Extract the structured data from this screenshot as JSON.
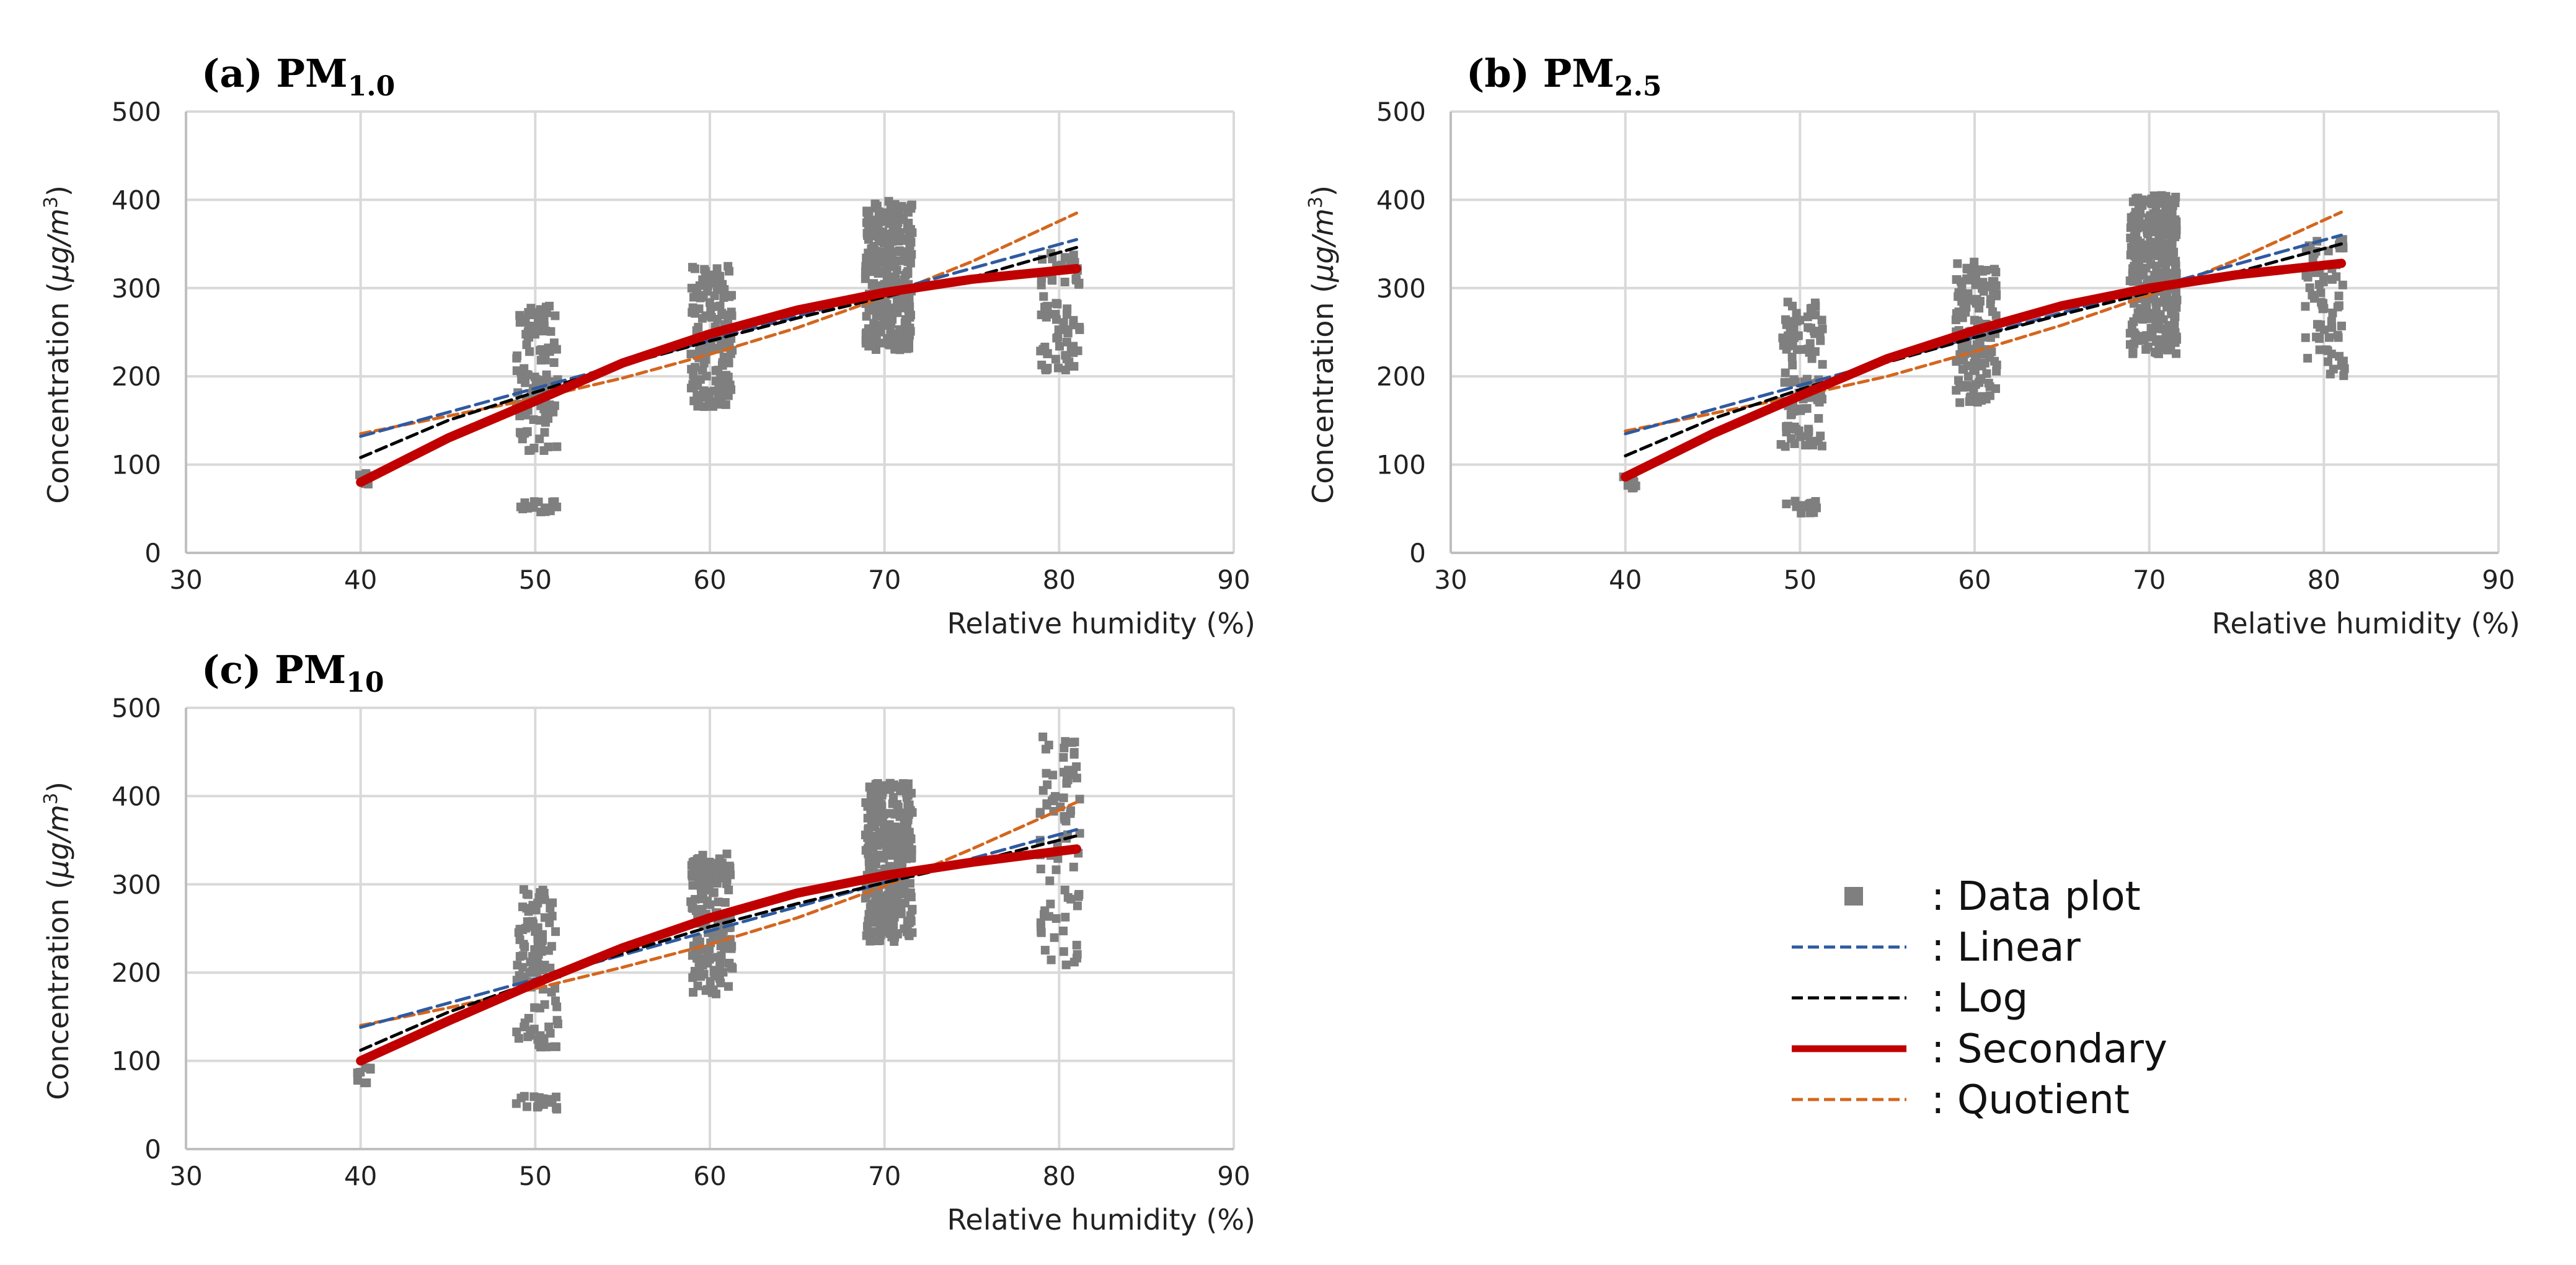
{
  "chart_data": [
    {
      "type": "scatter",
      "panel": "a",
      "title": "(a) PM",
      "title_subscript": "1.0",
      "xlabel": "Relative humidity (%)",
      "ylabel": "Concentration (μg/m³)",
      "ylabel_parts": {
        "prefix": "Concentration (",
        "unit": "μg/m",
        "sup": "3",
        "suffix": ")"
      },
      "xlim": [
        30,
        90
      ],
      "ylim": [
        0,
        500
      ],
      "xticks": [
        30,
        40,
        50,
        60,
        70,
        80,
        90
      ],
      "yticks": [
        0,
        100,
        200,
        300,
        400,
        500
      ],
      "grid": true,
      "data_clusters": [
        {
          "x_range": [
            39.8,
            40.6
          ],
          "y_range": [
            75,
            90
          ],
          "n": 8
        },
        {
          "x_range": [
            48.9,
            51.3
          ],
          "y_range": [
            45,
            60
          ],
          "n": 18
        },
        {
          "x_range": [
            48.9,
            51.3
          ],
          "y_range": [
            115,
            280
          ],
          "n": 110
        },
        {
          "x_range": [
            58.9,
            61.3
          ],
          "y_range": [
            165,
            325
          ],
          "n": 150
        },
        {
          "x_range": [
            68.9,
            71.6
          ],
          "y_range": [
            230,
            400
          ],
          "n": 320
        },
        {
          "x_range": [
            78.9,
            81.2
          ],
          "y_range": [
            205,
            340
          ],
          "n": 70
        }
      ],
      "series": [
        {
          "name": "Linear",
          "x": [
            40,
            81
          ],
          "y": [
            132,
            355
          ]
        },
        {
          "name": "Log",
          "x": [
            40,
            45,
            50,
            55,
            60,
            65,
            70,
            75,
            81
          ],
          "y": [
            108,
            150,
            182,
            213,
            240,
            266,
            290,
            312,
            346
          ]
        },
        {
          "name": "Secondary",
          "x": [
            40,
            45,
            50,
            55,
            60,
            65,
            70,
            75,
            81
          ],
          "y": [
            80,
            130,
            172,
            215,
            248,
            275,
            295,
            310,
            322
          ]
        },
        {
          "name": "Quotient",
          "x": [
            40,
            45,
            50,
            55,
            60,
            65,
            70,
            75,
            81
          ],
          "y": [
            135,
            155,
            175,
            198,
            225,
            255,
            290,
            330,
            385
          ]
        }
      ]
    },
    {
      "type": "scatter",
      "panel": "b",
      "title": "(b) PM",
      "title_subscript": "2.5",
      "xlabel": "Relative humidity (%)",
      "ylabel": "Concentration (μg/m³)",
      "ylabel_parts": {
        "prefix": "Concentration (",
        "unit": "μg/m",
        "sup": "3",
        "suffix": ")"
      },
      "xlim": [
        30,
        90
      ],
      "ylim": [
        0,
        500
      ],
      "xticks": [
        30,
        40,
        50,
        60,
        70,
        80,
        90
      ],
      "yticks": [
        0,
        100,
        200,
        300,
        400,
        500
      ],
      "grid": true,
      "data_clusters": [
        {
          "x_range": [
            39.8,
            40.6
          ],
          "y_range": [
            72,
            95
          ],
          "n": 8
        },
        {
          "x_range": [
            48.9,
            51.3
          ],
          "y_range": [
            45,
            60
          ],
          "n": 18
        },
        {
          "x_range": [
            48.9,
            51.3
          ],
          "y_range": [
            120,
            285
          ],
          "n": 110
        },
        {
          "x_range": [
            58.9,
            61.3
          ],
          "y_range": [
            170,
            330
          ],
          "n": 150
        },
        {
          "x_range": [
            68.9,
            71.6
          ],
          "y_range": [
            225,
            405
          ],
          "n": 320
        },
        {
          "x_range": [
            78.9,
            81.2
          ],
          "y_range": [
            200,
            360
          ],
          "n": 70
        }
      ],
      "series": [
        {
          "name": "Linear",
          "x": [
            40,
            81
          ],
          "y": [
            135,
            360
          ]
        },
        {
          "name": "Log",
          "x": [
            40,
            45,
            50,
            55,
            60,
            65,
            70,
            75,
            81
          ],
          "y": [
            110,
            152,
            185,
            216,
            244,
            270,
            295,
            318,
            350
          ]
        },
        {
          "name": "Secondary",
          "x": [
            40,
            45,
            50,
            55,
            60,
            65,
            70,
            75,
            81
          ],
          "y": [
            86,
            135,
            178,
            220,
            252,
            280,
            300,
            315,
            328
          ]
        },
        {
          "name": "Quotient",
          "x": [
            40,
            45,
            50,
            55,
            60,
            65,
            70,
            75,
            81
          ],
          "y": [
            138,
            158,
            178,
            200,
            228,
            258,
            292,
            332,
            386
          ]
        }
      ]
    },
    {
      "type": "scatter",
      "panel": "c",
      "title": "(c) PM",
      "title_subscript": "10",
      "xlabel": "Relative humidity (%)",
      "ylabel": "Concentration (μg/m³)",
      "ylabel_parts": {
        "prefix": "Concentration (",
        "unit": "μg/m",
        "sup": "3",
        "suffix": ")"
      },
      "xlim": [
        30,
        90
      ],
      "ylim": [
        0,
        500
      ],
      "xticks": [
        30,
        40,
        50,
        60,
        70,
        80,
        90
      ],
      "yticks": [
        0,
        100,
        200,
        300,
        400,
        500
      ],
      "grid": true,
      "data_clusters": [
        {
          "x_range": [
            39.8,
            40.6
          ],
          "y_range": [
            72,
            95
          ],
          "n": 8
        },
        {
          "x_range": [
            48.9,
            51.3
          ],
          "y_range": [
            45,
            60
          ],
          "n": 18
        },
        {
          "x_range": [
            48.9,
            51.3
          ],
          "y_range": [
            115,
            295
          ],
          "n": 110
        },
        {
          "x_range": [
            58.9,
            61.3
          ],
          "y_range": [
            175,
            335
          ],
          "n": 150
        },
        {
          "x_range": [
            68.9,
            71.6
          ],
          "y_range": [
            235,
            415
          ],
          "n": 320
        },
        {
          "x_range": [
            78.9,
            81.2
          ],
          "y_range": [
            205,
            475
          ],
          "n": 80
        }
      ],
      "series": [
        {
          "name": "Linear",
          "x": [
            40,
            81
          ],
          "y": [
            138,
            362
          ]
        },
        {
          "name": "Log",
          "x": [
            40,
            45,
            50,
            55,
            60,
            65,
            70,
            75,
            81
          ],
          "y": [
            112,
            155,
            190,
            222,
            252,
            278,
            302,
            325,
            355
          ]
        },
        {
          "name": "Secondary",
          "x": [
            40,
            45,
            50,
            55,
            60,
            65,
            70,
            75,
            81
          ],
          "y": [
            100,
            145,
            188,
            228,
            262,
            290,
            310,
            325,
            340
          ]
        },
        {
          "name": "Quotient",
          "x": [
            40,
            45,
            50,
            55,
            60,
            65,
            70,
            75,
            81
          ],
          "y": [
            140,
            160,
            182,
            206,
            232,
            262,
            298,
            340,
            393
          ]
        }
      ]
    }
  ],
  "legend": {
    "placement": "bottom-right",
    "items": [
      {
        "key": "data",
        "label": ": Data plot",
        "style": "square",
        "color": "#7f7f7f"
      },
      {
        "key": "linear",
        "label": ": Linear",
        "style": "dashed",
        "color": "#2e5aa0"
      },
      {
        "key": "log",
        "label": ": Log",
        "style": "dashed",
        "color": "#000000"
      },
      {
        "key": "secondary",
        "label": ": Secondary",
        "style": "solid-thick",
        "color": "#c00000"
      },
      {
        "key": "quotient",
        "label": ": Quotient",
        "style": "dashed",
        "color": "#d4661e"
      }
    ]
  },
  "series_colors": {
    "Linear": "#2e5aa0",
    "Log": "#000000",
    "Secondary": "#c00000",
    "Quotient": "#d4661e",
    "Data": "#7f7f7f"
  }
}
